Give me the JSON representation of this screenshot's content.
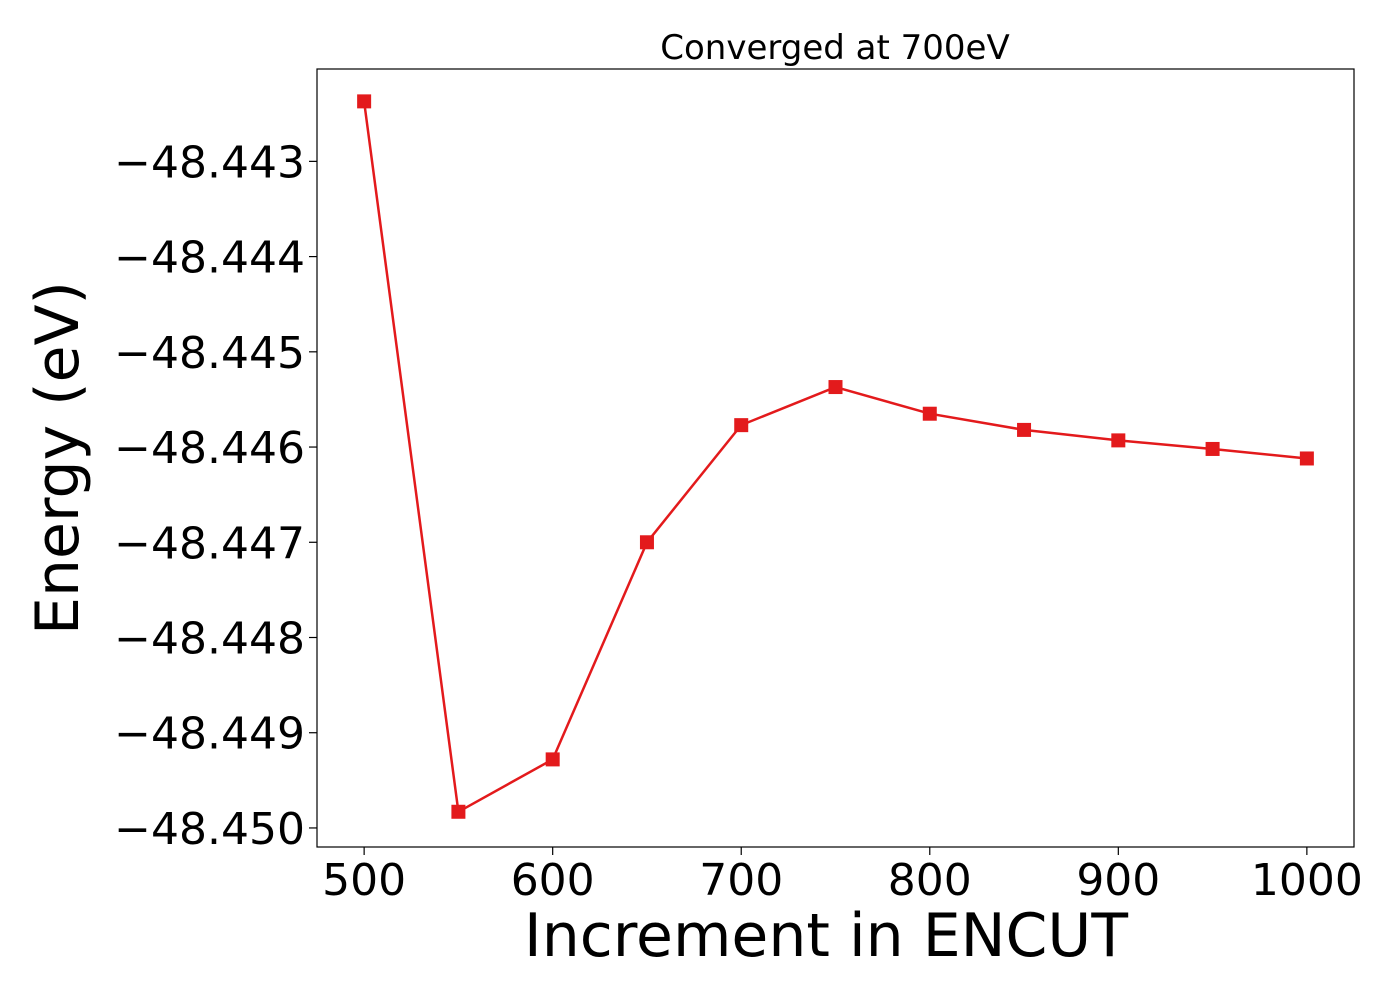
{
  "chart_data": {
    "type": "line",
    "title": "Converged at 700eV",
    "xlabel": "Increment in ENCUT",
    "ylabel": "Energy (eV)",
    "x": [
      500,
      550,
      600,
      650,
      700,
      750,
      800,
      850,
      900,
      950,
      1000
    ],
    "series": [
      {
        "values": [
          -48.44237,
          -48.44983,
          -48.44928,
          -48.447,
          -48.44577,
          -48.44537,
          -48.44565,
          -48.44582,
          -48.44593,
          -48.44602,
          -48.44612
        ],
        "color": "#e31a1c",
        "marker": "square"
      }
    ],
    "xlim": [
      475,
      1025
    ],
    "ylim": [
      -48.4502,
      -48.44203
    ],
    "xticks": [
      500,
      600,
      700,
      800,
      900,
      1000
    ],
    "xtick_labels": [
      "500",
      "600",
      "700",
      "800",
      "900",
      "1000"
    ],
    "yticks": [
      -48.443,
      -48.444,
      -48.445,
      -48.446,
      -48.447,
      -48.448,
      -48.449,
      -48.45
    ],
    "ytick_labels": [
      "−48.443",
      "−48.444",
      "−48.445",
      "−48.446",
      "−48.447",
      "−48.448",
      "−48.449",
      "−48.450"
    ],
    "grid": false,
    "legend": "none"
  }
}
